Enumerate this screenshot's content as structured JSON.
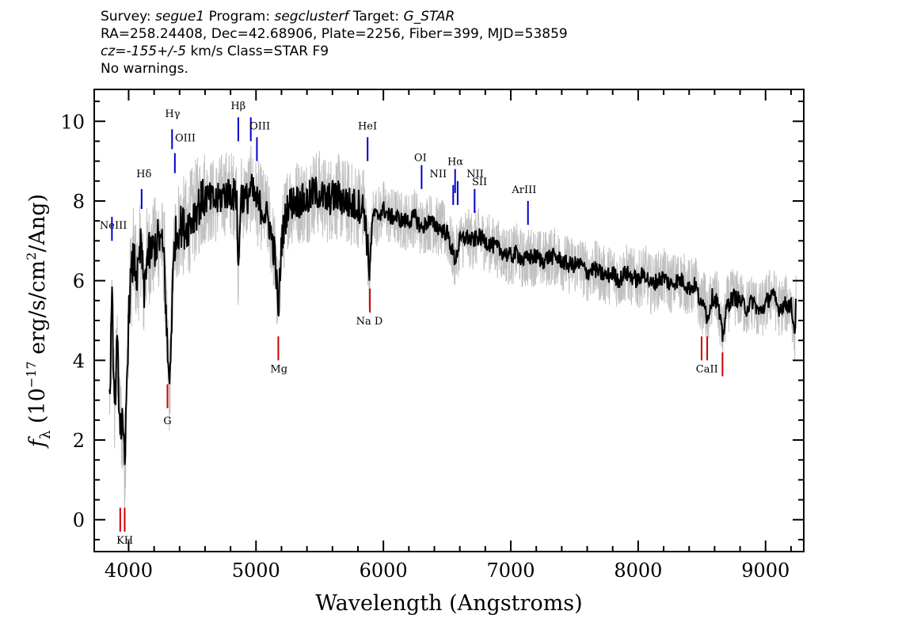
{
  "header": {
    "survey_label": "Survey:",
    "survey": "segue1",
    "program_label": "Program:",
    "program": "segclusterf",
    "target_label": "Target:",
    "target": "G_STAR",
    "line2": "RA=258.24408, Dec=42.68906, Plate=2256, Fiber=399, MJD=53859",
    "cz": "cz=-155+/-5",
    "cz_rest": "km/s Class=STAR F9",
    "line4": "No warnings."
  },
  "chart_data": {
    "type": "line",
    "xlabel": "Wavelength (Angstroms)",
    "ylabel": "f_λ (10^-17 erg/s/cm^2/Ang)",
    "xlim": [
      3730,
      9300
    ],
    "ylim": [
      -0.8,
      10.8
    ],
    "x_ticks": [
      4000,
      5000,
      6000,
      7000,
      8000,
      9000
    ],
    "y_ticks": [
      0,
      2,
      4,
      6,
      8,
      10
    ],
    "colors": {
      "flux": "#000000",
      "noise": "#c0c0c0",
      "emission": "#0000cc",
      "absorption": "#cc0000"
    },
    "series": [
      {
        "role": "smoothed flux",
        "points": [
          [
            3850,
            2.9
          ],
          [
            3870,
            5.4
          ],
          [
            3890,
            2.8
          ],
          [
            3910,
            4.3
          ],
          [
            3930,
            2.6
          ],
          [
            3950,
            2.3
          ],
          [
            3970,
            1.2
          ],
          [
            3990,
            4.1
          ],
          [
            4010,
            5.8
          ],
          [
            4040,
            6.6
          ],
          [
            4070,
            6.0
          ],
          [
            4100,
            7.0
          ],
          [
            4120,
            5.5
          ],
          [
            4140,
            6.6
          ],
          [
            4170,
            6.7
          ],
          [
            4200,
            6.8
          ],
          [
            4240,
            7.1
          ],
          [
            4280,
            6.6
          ],
          [
            4300,
            4.5
          ],
          [
            4320,
            3.3
          ],
          [
            4340,
            5.3
          ],
          [
            4360,
            7.0
          ],
          [
            4400,
            7.4
          ],
          [
            4450,
            7.3
          ],
          [
            4500,
            7.6
          ],
          [
            4550,
            7.9
          ],
          [
            4600,
            8.1
          ],
          [
            4650,
            8.0
          ],
          [
            4700,
            8.0
          ],
          [
            4750,
            8.2
          ],
          [
            4800,
            8.2
          ],
          [
            4850,
            8.1
          ],
          [
            4861,
            6.0
          ],
          [
            4880,
            8.2
          ],
          [
            4920,
            8.0
          ],
          [
            4960,
            8.3
          ],
          [
            5000,
            8.0
          ],
          [
            5050,
            7.8
          ],
          [
            5100,
            7.5
          ],
          [
            5150,
            6.6
          ],
          [
            5175,
            5.1
          ],
          [
            5200,
            7.0
          ],
          [
            5250,
            7.9
          ],
          [
            5300,
            8.0
          ],
          [
            5350,
            8.0
          ],
          [
            5400,
            8.0
          ],
          [
            5450,
            8.2
          ],
          [
            5500,
            8.2
          ],
          [
            5550,
            8.0
          ],
          [
            5600,
            8.1
          ],
          [
            5650,
            8.1
          ],
          [
            5700,
            8.0
          ],
          [
            5750,
            7.9
          ],
          [
            5800,
            7.9
          ],
          [
            5850,
            7.8
          ],
          [
            5890,
            6.3
          ],
          [
            5920,
            7.7
          ],
          [
            5950,
            7.6
          ],
          [
            6000,
            7.8
          ],
          [
            6050,
            7.6
          ],
          [
            6100,
            7.6
          ],
          [
            6150,
            7.5
          ],
          [
            6200,
            7.5
          ],
          [
            6250,
            7.6
          ],
          [
            6300,
            7.3
          ],
          [
            6350,
            7.5
          ],
          [
            6400,
            7.4
          ],
          [
            6450,
            7.3
          ],
          [
            6500,
            7.2
          ],
          [
            6563,
            6.5
          ],
          [
            6600,
            7.0
          ],
          [
            6650,
            7.1
          ],
          [
            6700,
            7.0
          ],
          [
            6750,
            7.1
          ],
          [
            6800,
            7.0
          ],
          [
            6850,
            6.9
          ],
          [
            6900,
            6.8
          ],
          [
            6950,
            6.7
          ],
          [
            7000,
            6.6
          ],
          [
            7050,
            6.7
          ],
          [
            7100,
            6.5
          ],
          [
            7150,
            6.6
          ],
          [
            7200,
            6.6
          ],
          [
            7250,
            6.5
          ],
          [
            7300,
            6.6
          ],
          [
            7350,
            6.6
          ],
          [
            7400,
            6.5
          ],
          [
            7450,
            6.4
          ],
          [
            7500,
            6.4
          ],
          [
            7550,
            6.4
          ],
          [
            7600,
            6.2
          ],
          [
            7650,
            6.3
          ],
          [
            7700,
            6.2
          ],
          [
            7750,
            6.1
          ],
          [
            7800,
            6.2
          ],
          [
            7850,
            6.0
          ],
          [
            7900,
            6.2
          ],
          [
            7950,
            6.1
          ],
          [
            8000,
            6.0
          ],
          [
            8050,
            6.2
          ],
          [
            8100,
            5.9
          ],
          [
            8150,
            6.0
          ],
          [
            8200,
            6.1
          ],
          [
            8250,
            5.9
          ],
          [
            8300,
            6.0
          ],
          [
            8350,
            6.0
          ],
          [
            8400,
            5.8
          ],
          [
            8450,
            5.9
          ],
          [
            8498,
            5.3
          ],
          [
            8520,
            5.6
          ],
          [
            8542,
            5.0
          ],
          [
            8580,
            5.6
          ],
          [
            8620,
            5.5
          ],
          [
            8662,
            4.6
          ],
          [
            8700,
            5.4
          ],
          [
            8750,
            5.6
          ],
          [
            8800,
            5.5
          ],
          [
            8850,
            5.3
          ],
          [
            8900,
            5.5
          ],
          [
            8950,
            5.2
          ],
          [
            9000,
            5.4
          ],
          [
            9050,
            5.7
          ],
          [
            9100,
            5.3
          ],
          [
            9150,
            5.4
          ],
          [
            9200,
            5.4
          ],
          [
            9230,
            4.7
          ],
          [
            9240,
            5.5
          ]
        ]
      }
    ],
    "lines": [
      {
        "label": "NeIII",
        "x": 3869,
        "kind": "emission",
        "y0": 7.0,
        "y1": 7.6
      },
      {
        "label": "Hδ",
        "x": 4102,
        "kind": "emission",
        "y0": 7.8,
        "y1": 8.3
      },
      {
        "label": "Hγ",
        "x": 4341,
        "kind": "emission",
        "y0": 9.3,
        "y1": 9.8
      },
      {
        "label": "OIII",
        "x": 4363,
        "kind": "emission",
        "y0": 8.7,
        "y1": 9.2
      },
      {
        "label": "Hβ",
        "x": 4861,
        "kind": "emission",
        "y0": 9.5,
        "y1": 10.1
      },
      {
        "label": "OIII",
        "x": 4959,
        "kind": "emission",
        "y0": 9.5,
        "y1": 10.1
      },
      {
        "label": "OIII",
        "x": 5007,
        "kind": "emission",
        "y0": 9.0,
        "y1": 9.6
      },
      {
        "label": "HeI",
        "x": 5876,
        "kind": "emission",
        "y0": 9.0,
        "y1": 9.6
      },
      {
        "label": "OI",
        "x": 6300,
        "kind": "emission",
        "y0": 8.3,
        "y1": 8.9
      },
      {
        "label": "NII",
        "x": 6548,
        "kind": "emission",
        "y0": 7.9,
        "y1": 8.4
      },
      {
        "label": "Hα",
        "x": 6563,
        "kind": "emission",
        "y0": 8.2,
        "y1": 8.8
      },
      {
        "label": "NII",
        "x": 6583,
        "kind": "emission",
        "y0": 7.9,
        "y1": 8.5
      },
      {
        "label": "SII",
        "x": 6716,
        "kind": "emission",
        "y0": 7.7,
        "y1": 8.3
      },
      {
        "label": "ArIII",
        "x": 7135,
        "kind": "emission",
        "y0": 7.4,
        "y1": 8.0
      },
      {
        "label": "K",
        "x": 3934,
        "kind": "absorption",
        "y0": -0.3,
        "y1": 0.3
      },
      {
        "label": "H",
        "x": 3969,
        "kind": "absorption",
        "y0": -0.3,
        "y1": 0.3
      },
      {
        "label": "G",
        "x": 4305,
        "kind": "absorption",
        "y0": 2.8,
        "y1": 3.4
      },
      {
        "label": "Mg",
        "x": 5175,
        "kind": "absorption",
        "y0": 4.0,
        "y1": 4.6
      },
      {
        "label": "Na D",
        "x": 5894,
        "kind": "absorption",
        "y0": 5.2,
        "y1": 5.8
      },
      {
        "label": "CaII",
        "x": 8498,
        "kind": "absorption",
        "y0": 4.0,
        "y1": 4.6
      },
      {
        "label": "CaII",
        "x": 8542,
        "kind": "absorption",
        "y0": 4.0,
        "y1": 4.6
      },
      {
        "label": "CaII",
        "x": 8662,
        "kind": "absorption",
        "y0": 3.6,
        "y1": 4.2
      }
    ],
    "line_labels": [
      {
        "text": "NeIII",
        "x": 3880,
        "y": 7.3
      },
      {
        "text": "Hδ",
        "x": 4120,
        "y": 8.6
      },
      {
        "text": "Hγ",
        "x": 4345,
        "y": 10.1
      },
      {
        "text": "OIII",
        "x": 4445,
        "y": 9.5
      },
      {
        "text": "Hβ",
        "x": 4860,
        "y": 10.3
      },
      {
        "text": "OIII",
        "x": 5030,
        "y": 9.8
      },
      {
        "text": "HeI",
        "x": 5875,
        "y": 9.8
      },
      {
        "text": "OI",
        "x": 6290,
        "y": 9.0
      },
      {
        "text": "NII",
        "x": 6430,
        "y": 8.6
      },
      {
        "text": "Hα",
        "x": 6565,
        "y": 8.9
      },
      {
        "text": "NII",
        "x": 6720,
        "y": 8.6
      },
      {
        "text": "SII",
        "x": 6755,
        "y": 8.4
      },
      {
        "text": "ArIII",
        "x": 7105,
        "y": 8.2
      },
      {
        "text": "KH",
        "x": 3970,
        "y": -0.6
      },
      {
        "text": "G",
        "x": 4305,
        "y": 2.4
      },
      {
        "text": "Mg",
        "x": 5180,
        "y": 3.7
      },
      {
        "text": "Na D",
        "x": 5890,
        "y": 4.9
      },
      {
        "text": "CaII",
        "x": 8540,
        "y": 3.7
      }
    ]
  }
}
